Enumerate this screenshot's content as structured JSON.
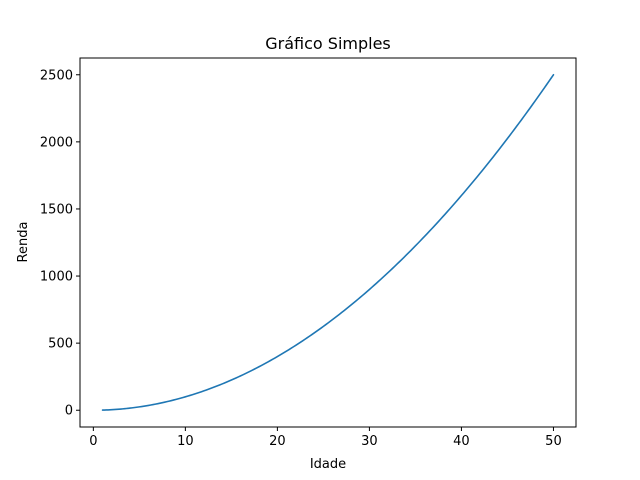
{
  "chart_data": {
    "type": "line",
    "title": "Gráfico Simples",
    "xlabel": "Idade",
    "ylabel": "Renda",
    "xlim": [
      -1.45,
      52.45
    ],
    "ylim": [
      -124.95,
      2624.95
    ],
    "xticks": [
      0,
      10,
      20,
      30,
      40,
      50
    ],
    "yticks": [
      0,
      500,
      1000,
      1500,
      2000,
      2500
    ],
    "grid": false,
    "legend": "none",
    "series": [
      {
        "color": "#1f77b4",
        "x": [
          1,
          5,
          10,
          15,
          20,
          25,
          30,
          35,
          40,
          45,
          50
        ],
        "y": [
          1,
          25,
          100,
          225,
          400,
          625,
          900,
          1225,
          1600,
          2025,
          2500
        ]
      }
    ]
  }
}
